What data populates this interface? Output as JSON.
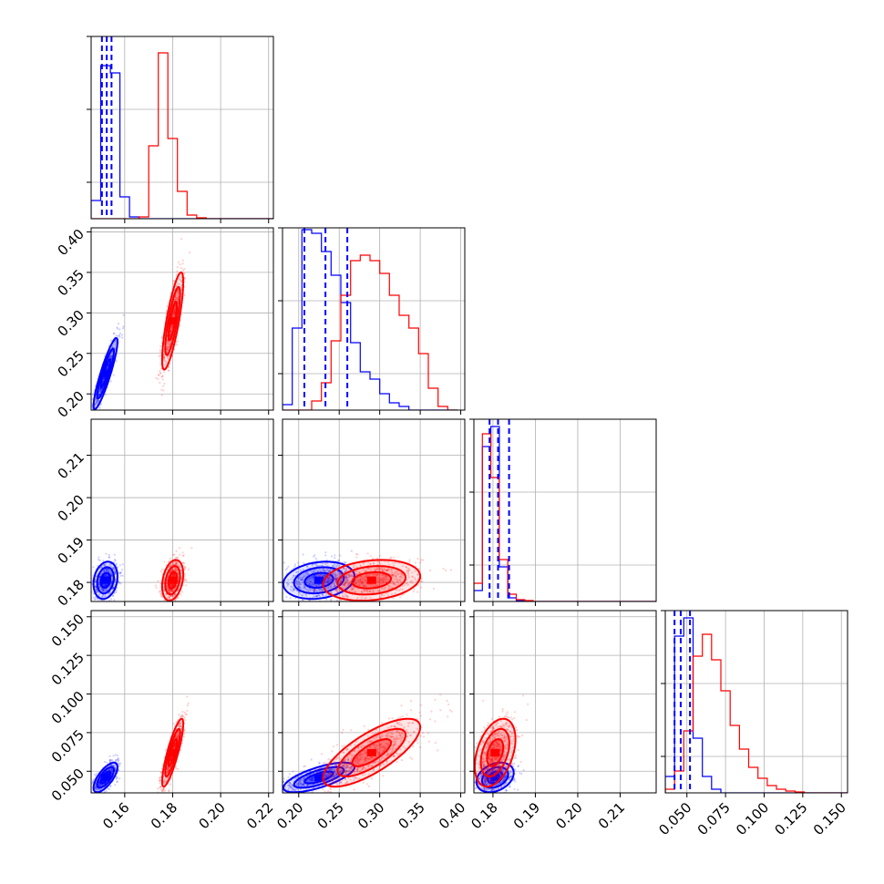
{
  "chart_data": {
    "type": "scatter",
    "title": "",
    "parameters": [
      {
        "range": [
          0.146,
          0.222
        ],
        "ticks": [
          0.16,
          0.18,
          0.2,
          0.22
        ],
        "tick_labels": [
          "0.16",
          "0.18",
          "0.20",
          "0.22"
        ]
      },
      {
        "range": [
          0.18,
          0.405
        ],
        "ticks": [
          0.2,
          0.25,
          0.3,
          0.35,
          0.4
        ],
        "tick_labels": [
          "0.20",
          "0.25",
          "0.30",
          "0.35",
          "0.40"
        ]
      },
      {
        "range": [
          0.1755,
          0.2185
        ],
        "ticks": [
          0.18,
          0.19,
          0.2,
          0.21
        ],
        "tick_labels": [
          "0.18",
          "0.19",
          "0.20",
          "0.21"
        ]
      },
      {
        "range": [
          0.036,
          0.154
        ],
        "ticks": [
          0.05,
          0.075,
          0.1,
          0.125,
          0.15
        ],
        "tick_labels": [
          "0.050",
          "0.075",
          "0.100",
          "0.125",
          "0.150"
        ]
      }
    ],
    "series": [
      {
        "color": "#0000ff",
        "mean": [
          0.152,
          0.225,
          0.1805,
          0.046
        ],
        "std": [
          0.0025,
          0.022,
          0.0022,
          0.0048
        ],
        "corr": [
          [
            1,
            0.9,
            0.2,
            0.7
          ],
          [
            0.9,
            1,
            0.2,
            0.7
          ],
          [
            0.2,
            0.2,
            1,
            0.3
          ],
          [
            0.7,
            0.7,
            0.3,
            1
          ]
        ]
      },
      {
        "color": "#ff0000",
        "mean": [
          0.18,
          0.29,
          0.1805,
          0.062
        ],
        "std": [
          0.0022,
          0.03,
          0.0024,
          0.011
        ],
        "corr": [
          [
            1,
            0.8,
            0.3,
            0.85
          ],
          [
            0.8,
            1,
            0.2,
            0.75
          ],
          [
            0.3,
            0.2,
            1,
            0.4
          ],
          [
            0.85,
            0.75,
            0.4,
            1
          ]
        ]
      }
    ],
    "quantile_lines": [
      [
        0.1505,
        0.1525,
        0.1545
      ],
      [
        0.207,
        0.233,
        0.26
      ],
      [
        0.1792,
        0.1812,
        0.1838
      ],
      [
        0.042,
        0.046,
        0.052
      ]
    ],
    "histograms": [
      {
        "edges": [
          0.146,
          0.15,
          0.154,
          0.158,
          0.162,
          0.166,
          0.17,
          0.174,
          0.178,
          0.182,
          0.186,
          0.19,
          0.194,
          0.198,
          0.202,
          0.206,
          0.21,
          0.214,
          0.218,
          0.222
        ],
        "blue": [
          0.1,
          0.84,
          0.8,
          0.12,
          0.01,
          0,
          0,
          0,
          0,
          0,
          0,
          0,
          0,
          0,
          0,
          0,
          0,
          0,
          0
        ],
        "red": [
          0,
          0,
          0,
          0,
          0,
          0.01,
          0.4,
          0.91,
          0.44,
          0.15,
          0.02,
          0.005,
          0,
          0,
          0,
          0,
          0,
          0,
          0
        ]
      },
      {
        "edges": [
          0.18,
          0.192,
          0.204,
          0.216,
          0.228,
          0.24,
          0.252,
          0.264,
          0.276,
          0.288,
          0.3,
          0.312,
          0.324,
          0.336,
          0.348,
          0.36,
          0.372,
          0.384,
          0.396
        ],
        "blue": [
          0.03,
          0.45,
          0.99,
          0.97,
          0.87,
          0.74,
          0.59,
          0.37,
          0.21,
          0.17,
          0.09,
          0.04,
          0.02,
          0,
          0,
          0,
          0,
          0
        ],
        "red": [
          0,
          0,
          0,
          0.05,
          0.15,
          0.38,
          0.63,
          0.82,
          0.85,
          0.82,
          0.75,
          0.63,
          0.52,
          0.45,
          0.31,
          0.12,
          0.02,
          0
        ]
      },
      {
        "edges": [
          0.1755,
          0.1775,
          0.1795,
          0.1815,
          0.1835,
          0.1855,
          0.1875,
          0.1895,
          0.1915,
          0.1935,
          0.1955,
          0.1975,
          0.1995,
          0.2015,
          0.2035,
          0.2055,
          0.2075,
          0.2095,
          0.2115,
          0.2135,
          0.2185
        ],
        "blue": [
          0.06,
          0.85,
          0.96,
          0.19,
          0.02,
          0.005,
          0,
          0,
          0,
          0,
          0,
          0,
          0,
          0,
          0,
          0,
          0,
          0,
          0,
          0
        ],
        "red": [
          0.1,
          0.92,
          0.68,
          0.23,
          0.04,
          0.01,
          0.005,
          0,
          0,
          0,
          0,
          0,
          0,
          0,
          0,
          0,
          0,
          0,
          0,
          0
        ]
      },
      {
        "edges": [
          0.036,
          0.042,
          0.048,
          0.054,
          0.06,
          0.066,
          0.072,
          0.078,
          0.084,
          0.09,
          0.096,
          0.102,
          0.108,
          0.114,
          0.12,
          0.126,
          0.132,
          0.138,
          0.144,
          0.15,
          0.154
        ],
        "blue": [
          0.09,
          0.86,
          0.96,
          0.3,
          0.09,
          0.02,
          0,
          0,
          0,
          0,
          0,
          0,
          0,
          0,
          0,
          0,
          0,
          0,
          0,
          0
        ],
        "red": [
          0.02,
          0.12,
          0.34,
          0.75,
          0.87,
          0.73,
          0.56,
          0.37,
          0.24,
          0.14,
          0.08,
          0.04,
          0.02,
          0.01,
          0.005,
          0,
          0,
          0,
          0,
          0
        ]
      }
    ]
  }
}
